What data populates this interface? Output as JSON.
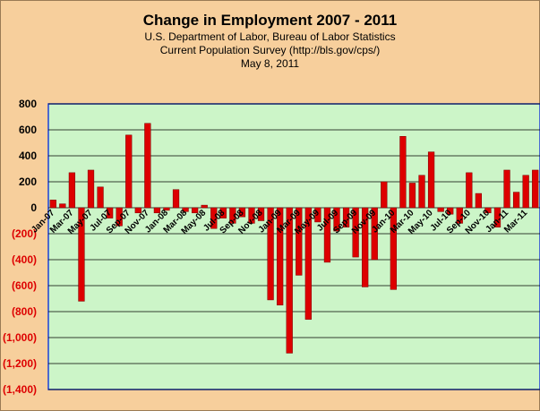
{
  "chart_data": {
    "type": "bar",
    "title": "Change in Employment 2007 - 2011",
    "subtitle_lines": [
      "U.S. Department of Labor, Bureau of Labor Statistics",
      "Current Population Survey (http://bls.gov/cps/)",
      "May 8, 2011"
    ],
    "xlabel": "",
    "ylabel": "",
    "ylim": [
      -1400,
      800
    ],
    "y_ticks": [
      {
        "value": 800,
        "label": "800"
      },
      {
        "value": 600,
        "label": "600"
      },
      {
        "value": 400,
        "label": "400"
      },
      {
        "value": 200,
        "label": "200"
      },
      {
        "value": 0,
        "label": "0"
      },
      {
        "value": -200,
        "label": "(200)"
      },
      {
        "value": -400,
        "label": "(400)"
      },
      {
        "value": -600,
        "label": "(600)"
      },
      {
        "value": -800,
        "label": "(800)"
      },
      {
        "value": -1000,
        "label": "(1,000)"
      },
      {
        "value": -1200,
        "label": "(1,200)"
      },
      {
        "value": -1400,
        "label": "(1,400)"
      }
    ],
    "grid": true,
    "legend": "none",
    "colors": {
      "background": "#f7cf9c",
      "plot_area": "#ccf5c8",
      "bar": "#dd0000",
      "bar_edge": "#7a0000",
      "positive_tick": "#000000",
      "negative_tick": "#dd0000",
      "plot_border": "#1f3fd6"
    },
    "categories": [
      "Jan-07",
      "Feb-07",
      "Mar-07",
      "Apr-07",
      "May-07",
      "Jun-07",
      "Jul-07",
      "Aug-07",
      "Sep-07",
      "Oct-07",
      "Nov-07",
      "Dec-07",
      "Jan-08",
      "Feb-08",
      "Mar-08",
      "Apr-08",
      "May-08",
      "Jun-08",
      "Jul-08",
      "Aug-08",
      "Sep-08",
      "Oct-08",
      "Nov-08",
      "Dec-08",
      "Jan-09",
      "Feb-09",
      "Mar-09",
      "Apr-09",
      "May-09",
      "Jun-09",
      "Jul-09",
      "Aug-09",
      "Sep-09",
      "Oct-09",
      "Nov-09",
      "Dec-09",
      "Jan-10",
      "Feb-10",
      "Mar-10",
      "Apr-10",
      "May-10",
      "Jun-10",
      "Jul-10",
      "Aug-10",
      "Sep-10",
      "Oct-10",
      "Nov-10",
      "Dec-10",
      "Jan-11",
      "Feb-11",
      "Mar-11",
      "Apr-11"
    ],
    "x_tick_labels": [
      "Jan-07",
      "Mar-07",
      "May-07",
      "Jul-07",
      "Sep-07",
      "Nov-07",
      "Jan-08",
      "Mar-08",
      "May-08",
      "Jul-08",
      "Sep-08",
      "Nov-08",
      "Jan-09",
      "Mar-09",
      "May-09",
      "Jul-09",
      "Sep-09",
      "Nov-09",
      "Jan-10",
      "Mar-10",
      "May-10",
      "Jul-10",
      "Sep-10",
      "Nov-10",
      "Jan-11",
      "Mar-11"
    ],
    "values": [
      60,
      30,
      270,
      -720,
      290,
      160,
      -80,
      -140,
      560,
      -40,
      650,
      -40,
      -20,
      140,
      -30,
      -40,
      20,
      -160,
      -80,
      -120,
      -70,
      -120,
      -100,
      -710,
      -750,
      -1120,
      -520,
      -860,
      -110,
      -420,
      -180,
      -150,
      -380,
      -610,
      -400,
      200,
      -630,
      550,
      190,
      250,
      430,
      -30,
      -50,
      -120,
      270,
      110,
      -40,
      -150,
      290,
      120,
      250,
      290
    ]
  }
}
